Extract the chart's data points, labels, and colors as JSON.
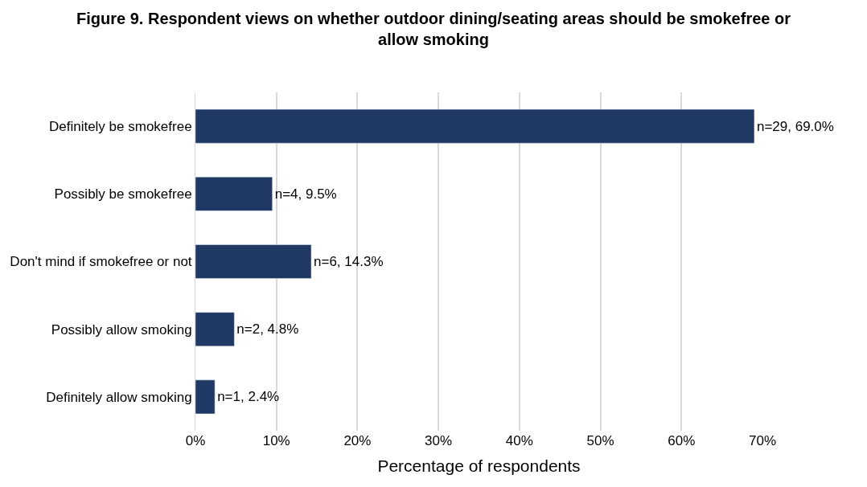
{
  "chart_data": {
    "type": "bar",
    "orientation": "horizontal",
    "title": "Figure 9. Respondent views on whether outdoor dining/seating areas should be smokefree or allow smoking",
    "xlabel": "Percentage of respondents",
    "categories": [
      "Definitely be smokefree",
      "Possibly be smokefree",
      "Don't mind if smokefree or not",
      "Possibly allow smoking",
      "Definitely allow smoking"
    ],
    "values": [
      69.0,
      9.5,
      14.3,
      4.8,
      2.4
    ],
    "value_labels": [
      "n=29, 69.0%",
      "n=4, 9.5%",
      "n=6, 14.3%",
      "n=2, 4.8%",
      "n=1, 2.4%"
    ],
    "color": "#1f3864",
    "xlim": [
      0,
      70
    ],
    "xticks": [
      {
        "value": 0,
        "label": "0%"
      },
      {
        "value": 10,
        "label": "10%"
      },
      {
        "value": 20,
        "label": "20%"
      },
      {
        "value": 30,
        "label": "30%"
      },
      {
        "value": 40,
        "label": "40%"
      },
      {
        "value": 50,
        "label": "50%"
      },
      {
        "value": 60,
        "label": "60%"
      },
      {
        "value": 70,
        "label": "70%"
      }
    ],
    "grid": "x",
    "legend": false
  }
}
